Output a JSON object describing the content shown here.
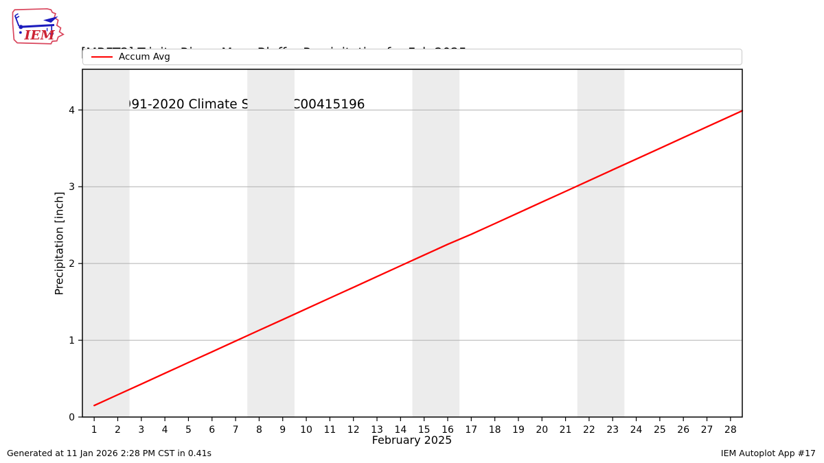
{
  "header": {
    "title_line1": "[MBFT2] Trinity River  Moss Bluff :: Precipitation for Feb 2025",
    "title_line2": "NCEI 1991-2020 Climate Site: USC00415196",
    "logo_text": "IEM"
  },
  "legend": {
    "items": [
      {
        "label": "Accum Avg",
        "color": "#ff0000"
      }
    ]
  },
  "footer": {
    "left": "Generated at 11 Jan 2026 2:28 PM CST in 0.41s",
    "right": "IEM Autoplot App #17"
  },
  "chart_data": {
    "type": "line",
    "title": "[MBFT2] Trinity River  Moss Bluff :: Precipitation for Feb 2025",
    "subtitle": "NCEI 1991-2020 Climate Site: USC00415196",
    "xlabel": "February 2025",
    "ylabel": "Precipitation [inch]",
    "xlim": [
      0.5,
      28.5
    ],
    "ylim": [
      0,
      4.53
    ],
    "xticks": [
      1,
      2,
      3,
      4,
      5,
      6,
      7,
      8,
      9,
      10,
      11,
      12,
      13,
      14,
      15,
      16,
      17,
      18,
      19,
      20,
      21,
      22,
      23,
      24,
      25,
      26,
      27,
      28
    ],
    "yticks": [
      0,
      1,
      2,
      3,
      4
    ],
    "grid": "horizontal",
    "grid_color": "#b0b0b0",
    "band_color": "#ececec",
    "frame_color": "#000000",
    "legend_position": "top",
    "weekend_shading": [
      [
        0.5,
        2.5
      ],
      [
        7.5,
        9.5
      ],
      [
        14.5,
        16.5
      ],
      [
        21.5,
        23.5
      ]
    ],
    "series": [
      {
        "name": "Accum Avg",
        "color": "#ff0000",
        "x": [
          1,
          2,
          3,
          4,
          5,
          6,
          7,
          8,
          9,
          10,
          11,
          12,
          13,
          14,
          15,
          16,
          17,
          18,
          19,
          20,
          21,
          22,
          23,
          24,
          25,
          26,
          27,
          28,
          28.5
        ],
        "values": [
          0.15,
          0.29,
          0.43,
          0.57,
          0.71,
          0.85,
          0.99,
          1.13,
          1.27,
          1.41,
          1.55,
          1.69,
          1.83,
          1.97,
          2.11,
          2.25,
          2.38,
          2.52,
          2.66,
          2.8,
          2.94,
          3.08,
          3.22,
          3.36,
          3.5,
          3.64,
          3.78,
          3.92,
          3.99
        ]
      }
    ]
  }
}
